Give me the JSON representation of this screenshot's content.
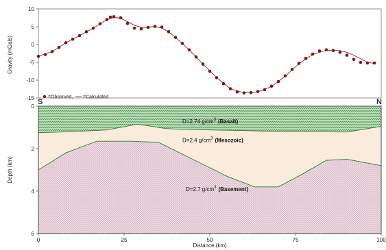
{
  "chart_data": [
    {
      "type": "line",
      "ylabel": "Gravity (mGals)",
      "xlim": [
        0,
        100
      ],
      "ylim": [
        -15,
        10
      ],
      "y_ticks": [
        "10",
        "5",
        "0",
        "-5",
        "-10",
        "-15"
      ],
      "legend": {
        "observed": "=Observed,",
        "calculated": "=Calculated",
        "position": "bottom-left"
      },
      "series": [
        {
          "name": "Observed",
          "style": "red dots",
          "x": [
            0,
            2,
            4,
            6,
            8,
            10,
            12,
            14,
            16,
            18,
            20,
            21,
            22,
            24,
            26,
            28,
            30,
            32,
            34,
            36,
            38,
            40,
            42,
            44,
            46,
            48,
            50,
            52,
            54,
            56,
            58,
            60,
            62,
            64,
            66,
            68,
            70,
            72,
            74,
            76,
            78,
            80,
            82,
            84,
            86,
            88,
            90,
            92,
            94,
            96,
            98
          ],
          "y": [
            -3.3,
            -2.8,
            -2.0,
            -0.8,
            0.5,
            1.5,
            2.5,
            3.6,
            4.6,
            5.8,
            7.0,
            7.7,
            7.8,
            7.5,
            5.9,
            4.6,
            4.4,
            4.8,
            5.1,
            4.9,
            3.6,
            2.0,
            0.3,
            -1.5,
            -3.5,
            -5.5,
            -7.5,
            -9.3,
            -11.0,
            -12.4,
            -13.3,
            -13.6,
            -13.5,
            -13.2,
            -12.7,
            -11.7,
            -10.4,
            -8.8,
            -7.0,
            -5.3,
            -3.9,
            -2.7,
            -1.8,
            -1.5,
            -1.7,
            -2.2,
            -3.0,
            -4.2,
            -5.0,
            -5.2,
            -5.2
          ]
        },
        {
          "name": "Calculated",
          "style": "thin dark line",
          "x": [
            0,
            4,
            8,
            12,
            16,
            20,
            22,
            24,
            26,
            28,
            30,
            32,
            34,
            36,
            38,
            40,
            44,
            48,
            52,
            56,
            60,
            64,
            68,
            72,
            76,
            80,
            84,
            88,
            90,
            92,
            96,
            98
          ],
          "y": [
            -3.3,
            -2.0,
            0.5,
            2.5,
            4.6,
            7.0,
            7.6,
            7.4,
            6.4,
            5.4,
            4.8,
            4.9,
            5.0,
            4.7,
            3.5,
            2.0,
            -1.5,
            -5.5,
            -9.3,
            -12.4,
            -13.6,
            -13.3,
            -11.8,
            -8.9,
            -5.4,
            -2.8,
            -1.6,
            -1.7,
            -2.2,
            -3.0,
            -5.0,
            -5.3
          ]
        }
      ]
    },
    {
      "type": "area",
      "xlabel": "Distance (km)",
      "ylabel": "Depth (km)",
      "xlim": [
        0,
        100
      ],
      "ylim": [
        0,
        6
      ],
      "y_reversed": true,
      "x_ticks": [
        "0",
        "25",
        "50",
        "75",
        "100"
      ],
      "y_ticks": [
        "0",
        "2",
        "4",
        "6"
      ],
      "corner_labels": {
        "left": "S",
        "right": "N"
      },
      "layers": [
        {
          "name": "Basalt",
          "label_prefix": "D=2.74 g/cm",
          "label_sup": "3",
          "label_name": "(Basalt)",
          "label_pos": [
            42,
            0.8
          ],
          "color": "#2e8b2e",
          "bottom_x": [
            0,
            10,
            20,
            29,
            37,
            42,
            50,
            60,
            70,
            80,
            90,
            100
          ],
          "bottom_y": [
            1.25,
            1.2,
            1.12,
            0.85,
            1.05,
            1.1,
            1.12,
            1.15,
            1.2,
            1.2,
            1.22,
            0.95
          ]
        },
        {
          "name": "Mesozoic",
          "label_prefix": "D=2.4 g/cm",
          "label_sup": "3",
          "label_name": "(Mesozoic)",
          "label_pos": [
            42,
            1.7
          ],
          "color": "#e07a4a"
        },
        {
          "name": "Basement",
          "label_prefix": "D=2.7 g/cm",
          "label_sup": "3",
          "label_name": "(Basement)",
          "label_pos": [
            43,
            4.0
          ],
          "color": "#8a4a6a",
          "top_x": [
            0,
            8,
            17,
            27,
            35,
            45,
            55,
            63,
            70,
            77,
            84,
            90,
            100
          ],
          "top_y": [
            3.0,
            2.2,
            1.65,
            1.65,
            1.7,
            2.5,
            3.3,
            3.8,
            3.8,
            3.2,
            2.55,
            2.5,
            2.8
          ]
        }
      ]
    }
  ]
}
